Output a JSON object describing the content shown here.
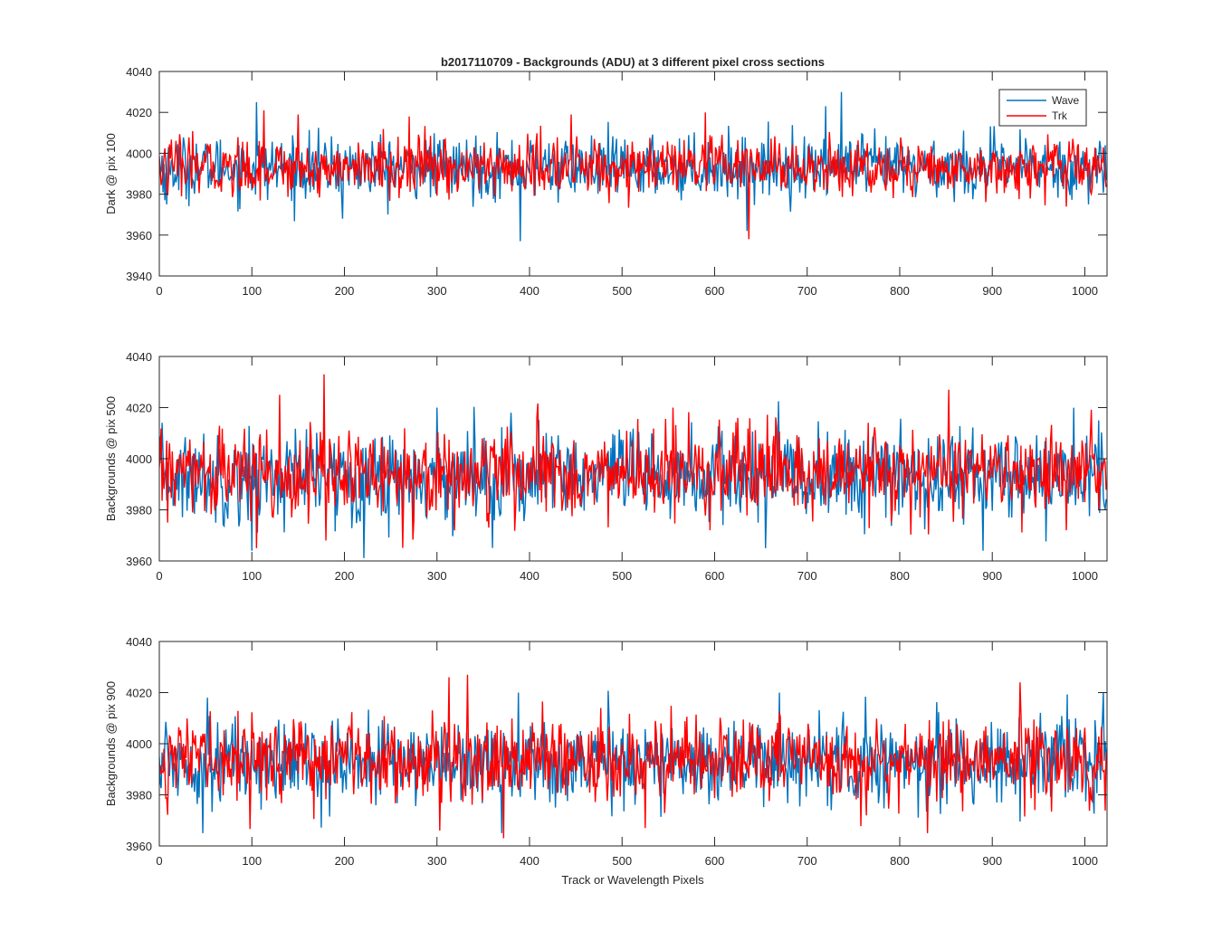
{
  "figure": {
    "title": "b2017110709 - Backgrounds (ADU) at 3 different pixel cross sections",
    "xlabel": "Track or Wavelength Pixels"
  },
  "legend": {
    "entries": [
      {
        "name": "Wave",
        "color": "#0072BD"
      },
      {
        "name": "Trk",
        "color": "#FF0000"
      }
    ],
    "placement": "top-right of first subplot"
  },
  "chart_data": [
    {
      "type": "line",
      "title": "b2017110709 - Backgrounds (ADU) at 3 different pixel cross sections",
      "xlabel": "",
      "ylabel": "Dark @ pix 100",
      "xlim": [
        0,
        1024
      ],
      "ylim": [
        3940,
        4040
      ],
      "xticks": [
        0,
        100,
        200,
        300,
        400,
        500,
        600,
        700,
        800,
        900,
        1000
      ],
      "yticks": [
        3940,
        3960,
        3980,
        4000,
        4020,
        4040
      ],
      "grid": false,
      "series": [
        {
          "name": "Wave",
          "color": "#0072BD",
          "n_points": 1024,
          "mean": 3993,
          "std": 7.5,
          "notable_points": [
            [
              8,
              3975
            ],
            [
              105,
              4025
            ],
            [
              150,
              4018
            ],
            [
              198,
              3968
            ],
            [
              390,
              3957
            ],
            [
              635,
              3962
            ],
            [
              720,
              4023
            ],
            [
              737,
              4030
            ],
            [
              1004,
              3975
            ]
          ]
        },
        {
          "name": "Trk",
          "color": "#FF0000",
          "n_points": 1024,
          "mean": 3993,
          "std": 7,
          "notable_points": [
            [
              113,
              4021
            ],
            [
              150,
              4019
            ],
            [
              270,
              4018
            ],
            [
              445,
              4019
            ],
            [
              590,
              4020
            ],
            [
              637,
              3958
            ],
            [
              840,
              3985
            ]
          ]
        }
      ]
    },
    {
      "type": "line",
      "xlabel": "",
      "ylabel": "Backgrounds @ pix 500",
      "xlim": [
        0,
        1024
      ],
      "ylim": [
        3960,
        4040
      ],
      "xticks": [
        0,
        100,
        200,
        300,
        400,
        500,
        600,
        700,
        800,
        900,
        1000
      ],
      "yticks": [
        3960,
        3980,
        4000,
        4020,
        4040
      ],
      "grid": false,
      "series": [
        {
          "name": "Wave",
          "color": "#0072BD",
          "n_points": 1024,
          "mean": 3993,
          "std": 9,
          "notable_points": [
            [
              100,
              3964
            ],
            [
              300,
              4020
            ],
            [
              380,
              4018
            ],
            [
              655,
              3965
            ],
            [
              890,
              3964
            ],
            [
              1015,
              4015
            ]
          ]
        },
        {
          "name": "Trk",
          "color": "#FF0000",
          "n_points": 1024,
          "mean": 3994,
          "std": 8.5,
          "notable_points": [
            [
              105,
              3965
            ],
            [
              130,
              4025
            ],
            [
              178,
              4033
            ],
            [
              180,
              3968
            ],
            [
              555,
              4020
            ],
            [
              595,
              3972
            ],
            [
              853,
              4027
            ],
            [
              980,
              3972
            ]
          ]
        }
      ]
    },
    {
      "type": "line",
      "xlabel": "Track or Wavelength Pixels",
      "ylabel": "Backgrounds @ pix 900",
      "xlim": [
        0,
        1024
      ],
      "ylim": [
        3960,
        4040
      ],
      "xticks": [
        0,
        100,
        200,
        300,
        400,
        500,
        600,
        700,
        800,
        900,
        1000
      ],
      "yticks": [
        3960,
        3980,
        4000,
        4020,
        4040
      ],
      "grid": false,
      "series": [
        {
          "name": "Wave",
          "color": "#0072BD",
          "n_points": 1024,
          "mean": 3993,
          "std": 8,
          "notable_points": [
            [
              47,
              3965
            ],
            [
              52,
              4018
            ],
            [
              370,
              3965
            ],
            [
              388,
              4020
            ],
            [
              670,
              4020
            ],
            [
              1020,
              4020
            ]
          ]
        },
        {
          "name": "Trk",
          "color": "#FF0000",
          "n_points": 1024,
          "mean": 3994,
          "std": 8,
          "notable_points": [
            [
              303,
              3966
            ],
            [
              313,
              4026
            ],
            [
              333,
              4027
            ],
            [
              372,
              3963
            ],
            [
              525,
              3967
            ],
            [
              830,
              3965
            ],
            [
              930,
              4024
            ]
          ]
        }
      ]
    }
  ]
}
